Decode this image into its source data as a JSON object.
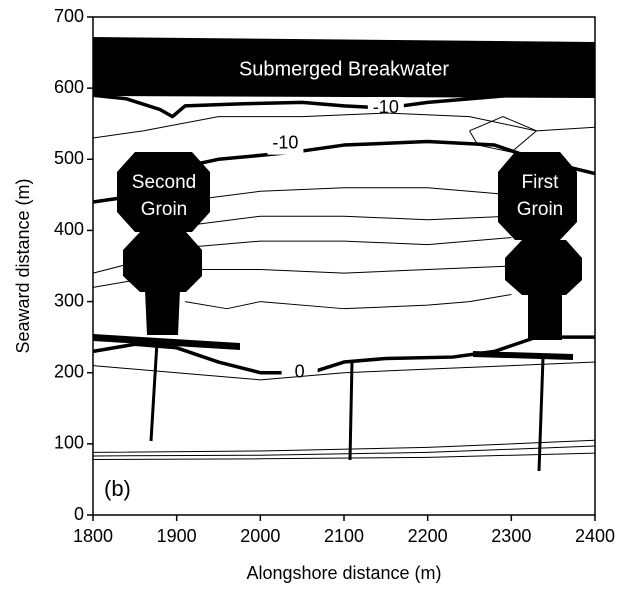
{
  "chart_data": {
    "type": "contour",
    "xlabel": "Alongshore distance (m)",
    "ylabel": "Seaward distance (m)",
    "xlim": [
      1800,
      2400
    ],
    "ylim": [
      0,
      700
    ],
    "xticks": [
      1800,
      1900,
      2000,
      2100,
      2200,
      2300,
      2400
    ],
    "yticks": [
      0,
      100,
      200,
      300,
      400,
      500,
      600,
      700
    ],
    "panel_label": "(b)",
    "structures": {
      "breakwater": "Submerged Breakwater",
      "second_groin": [
        "Second",
        "Groin"
      ],
      "first_groin": [
        "First",
        "Groin"
      ]
    },
    "contours": [
      {
        "label": "-10",
        "label_x": 2150,
        "label_y": 572,
        "x": [
          1800,
          1840,
          1880,
          1895,
          1910,
          1980,
          2050,
          2100,
          2150,
          2200,
          2300,
          2400
        ],
        "y": [
          590,
          585,
          570,
          560,
          575,
          578,
          580,
          575,
          572,
          580,
          590,
          600
        ]
      },
      {
        "label": "-10",
        "label_x": 2030,
        "label_y": 522,
        "x": [
          1800,
          1830,
          1870,
          1950,
          2040,
          2100,
          2200,
          2280,
          2330,
          2400
        ],
        "y": [
          440,
          445,
          480,
          500,
          510,
          520,
          525,
          520,
          500,
          480
        ]
      },
      {
        "label": "0",
        "label_x": 2047,
        "label_y": 200,
        "x": [
          1800,
          1850,
          1900,
          1950,
          2000,
          2060,
          2100,
          2150,
          2230,
          2280,
          2330,
          2400
        ],
        "y": [
          230,
          240,
          235,
          215,
          200,
          200,
          215,
          220,
          222,
          230,
          250,
          250
        ]
      },
      {
        "x": [
          1800,
          1860,
          1950,
          2050,
          2150,
          2250,
          2330,
          2400
        ],
        "y": [
          530,
          540,
          560,
          560,
          565,
          560,
          540,
          545
        ]
      },
      {
        "x": [
          1900,
          2000,
          2100,
          2200,
          2300
        ],
        "y": [
          440,
          455,
          460,
          460,
          450
        ]
      },
      {
        "x": [
          1900,
          2000,
          2100,
          2200,
          2300
        ],
        "y": [
          405,
          420,
          420,
          415,
          420
        ]
      },
      {
        "x": [
          1800,
          1850,
          1900,
          2000,
          2100,
          2200,
          2300
        ],
        "y": [
          340,
          355,
          375,
          385,
          385,
          380,
          390
        ]
      },
      {
        "x": [
          1800,
          1850,
          1900,
          2000,
          2100,
          2200,
          2300
        ],
        "y": [
          320,
          330,
          345,
          345,
          340,
          345,
          350
        ]
      },
      {
        "x": [
          1910,
          1960,
          2000,
          2100,
          2200,
          2250,
          2300
        ],
        "y": [
          300,
          290,
          300,
          290,
          295,
          300,
          310
        ]
      },
      {
        "x": [
          1800,
          1900,
          2000,
          2100,
          2200,
          2300,
          2400
        ],
        "y": [
          210,
          200,
          190,
          200,
          205,
          210,
          215
        ]
      },
      {
        "x": [
          1800,
          2000,
          2200,
          2400
        ],
        "y": [
          88,
          90,
          95,
          105
        ]
      },
      {
        "x": [
          1800,
          2000,
          2200,
          2400
        ],
        "y": [
          83,
          84,
          88,
          97
        ]
      },
      {
        "x": [
          1800,
          2000,
          2200,
          2400
        ],
        "y": [
          78,
          79,
          81,
          87
        ]
      },
      {
        "x": [
          2250,
          2290,
          2330,
          2300,
          2260,
          2250
        ],
        "y": [
          540,
          560,
          540,
          510,
          520,
          540
        ]
      }
    ]
  }
}
